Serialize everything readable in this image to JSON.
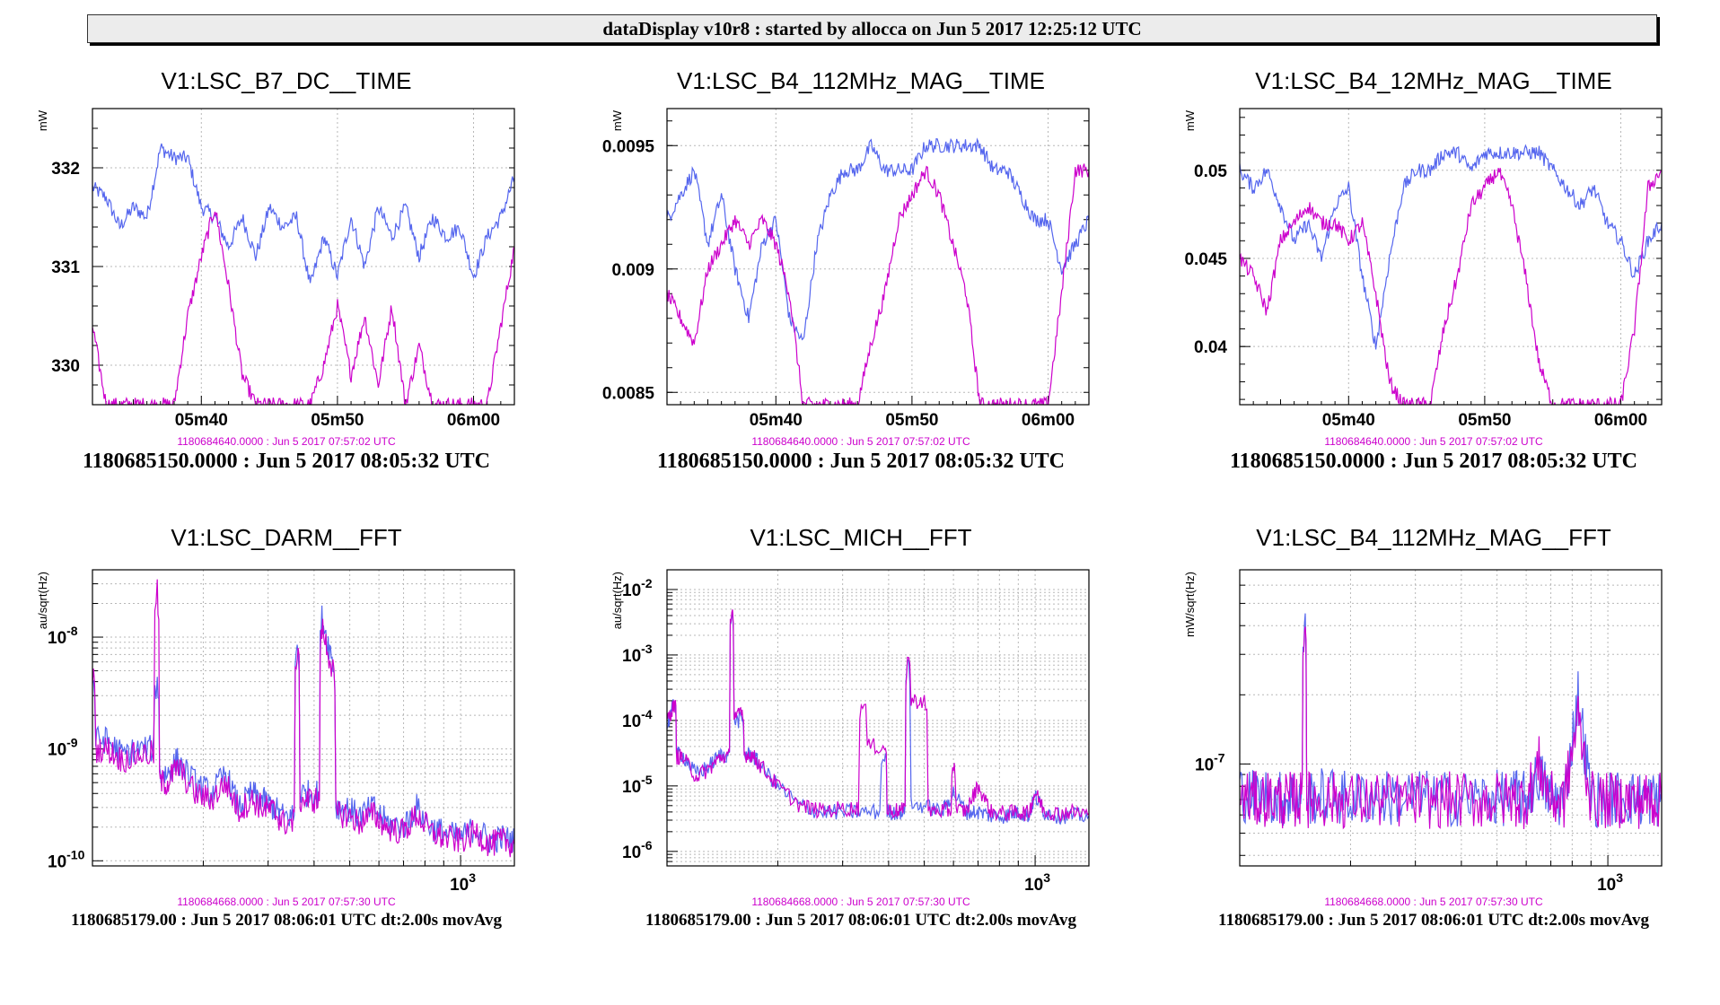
{
  "window": {
    "title": "dataDisplay v10r8 : started by allocca on Jun  5 2017 12:25:12 UTC"
  },
  "colors": {
    "series_blue": "#5566ee",
    "series_magenta": "#cc00cc"
  },
  "chart_data": [
    {
      "type": "line",
      "title": "V1:LSC_B7_DC__TIME",
      "ylabel": "mW",
      "xlabel": "",
      "xticks": [
        "05m40",
        "05m50",
        "06m00"
      ],
      "xlim": [
        32,
        63
      ],
      "ylim": [
        329.6,
        332.6
      ],
      "yticks": [
        {
          "v": 330,
          "t": "330"
        },
        {
          "v": 331,
          "t": "331"
        },
        {
          "v": 332,
          "t": "332"
        }
      ],
      "grid": true,
      "footer_small": "1180684640.0000 : Jun  5 2017 07:57:02 UTC",
      "footer_large": "1180685150.0000 : Jun  5 2017 08:05:32 UTC",
      "series": [
        {
          "color": "#5566ee",
          "x": [
            32,
            33,
            34,
            35,
            36,
            37,
            38,
            39,
            40,
            41,
            42,
            43,
            44,
            45,
            46,
            47,
            48,
            49,
            50,
            51,
            52,
            53,
            54,
            55,
            56,
            57,
            58,
            59,
            60,
            61,
            62,
            63
          ],
          "y": [
            331.8,
            331.7,
            331.4,
            331.6,
            331.5,
            332.2,
            332.1,
            332.1,
            331.6,
            331.5,
            331.2,
            331.5,
            331.1,
            331.6,
            331.4,
            331.5,
            330.8,
            331.3,
            330.9,
            331.5,
            331.0,
            331.6,
            331.3,
            331.6,
            331.1,
            331.5,
            331.3,
            331.4,
            330.9,
            331.3,
            331.5,
            331.9
          ]
        },
        {
          "color": "#cc00cc",
          "x": [
            32,
            33,
            34,
            35,
            36,
            37,
            38,
            39,
            40,
            41,
            42,
            43,
            44,
            45,
            46,
            47,
            48,
            49,
            50,
            51,
            52,
            53,
            54,
            55,
            56,
            57,
            58,
            59,
            60,
            61,
            62,
            63
          ],
          "y": [
            330.4,
            329.6,
            329.6,
            329.6,
            329.6,
            329.6,
            329.6,
            330.5,
            331.1,
            331.6,
            330.8,
            329.9,
            329.6,
            329.6,
            329.6,
            329.6,
            329.6,
            330.0,
            330.6,
            329.9,
            330.5,
            329.8,
            330.6,
            329.6,
            330.2,
            329.6,
            329.6,
            329.6,
            329.6,
            329.6,
            330.4,
            331.2
          ]
        }
      ]
    },
    {
      "type": "line",
      "title": "V1:LSC_B4_112MHz_MAG__TIME",
      "ylabel": "mW",
      "xlabel": "",
      "xticks": [
        "05m40",
        "05m50",
        "06m00"
      ],
      "xlim": [
        32,
        63
      ],
      "ylim": [
        0.00845,
        0.00965
      ],
      "yticks": [
        {
          "v": 0.0085,
          "t": "0.0085"
        },
        {
          "v": 0.009,
          "t": "0.009"
        },
        {
          "v": 0.0095,
          "t": "0.0095"
        }
      ],
      "grid": true,
      "footer_small": "1180684640.0000 : Jun  5 2017 07:57:02 UTC",
      "footer_large": "1180685150.0000 : Jun  5 2017 08:05:32 UTC",
      "series": [
        {
          "color": "#5566ee",
          "x": [
            32,
            33,
            34,
            35,
            36,
            37,
            38,
            39,
            40,
            41,
            42,
            43,
            44,
            45,
            46,
            47,
            48,
            49,
            50,
            51,
            52,
            53,
            54,
            55,
            56,
            57,
            58,
            59,
            60,
            61,
            62,
            63
          ],
          "y": [
            0.0092,
            0.0093,
            0.0094,
            0.0091,
            0.0093,
            0.009,
            0.0088,
            0.0091,
            0.0092,
            0.0088,
            0.0087,
            0.0091,
            0.0093,
            0.0094,
            0.0094,
            0.0095,
            0.0094,
            0.0094,
            0.0094,
            0.0095,
            0.0095,
            0.0095,
            0.0095,
            0.0095,
            0.0094,
            0.0094,
            0.0093,
            0.0092,
            0.0092,
            0.009,
            0.0091,
            0.0092
          ]
        },
        {
          "color": "#cc00cc",
          "x": [
            32,
            33,
            34,
            35,
            36,
            37,
            38,
            39,
            40,
            41,
            42,
            43,
            44,
            45,
            46,
            47,
            48,
            49,
            50,
            51,
            52,
            53,
            54,
            55,
            56,
            57,
            58,
            59,
            60,
            61,
            62,
            63
          ],
          "y": [
            0.0089,
            0.0088,
            0.0087,
            0.009,
            0.0091,
            0.0092,
            0.0091,
            0.0092,
            0.0091,
            0.0089,
            0.00845,
            0.00845,
            0.00845,
            0.00845,
            0.00845,
            0.0087,
            0.0089,
            0.0092,
            0.0093,
            0.0094,
            0.0093,
            0.0091,
            0.0089,
            0.00845,
            0.00845,
            0.00845,
            0.00845,
            0.00845,
            0.00845,
            0.0089,
            0.0094,
            0.0094
          ]
        }
      ]
    },
    {
      "type": "line",
      "title": "V1:LSC_B4_12MHz_MAG__TIME",
      "ylabel": "mW",
      "xlabel": "",
      "xticks": [
        "05m40",
        "05m50",
        "06m00"
      ],
      "xlim": [
        32,
        63
      ],
      "ylim": [
        0.0367,
        0.0535
      ],
      "yticks": [
        {
          "v": 0.04,
          "t": "0.04"
        },
        {
          "v": 0.045,
          "t": "0.045"
        },
        {
          "v": 0.05,
          "t": "0.05"
        }
      ],
      "grid": true,
      "footer_small": "1180684640.0000 : Jun  5 2017 07:57:02 UTC",
      "footer_large": "1180685150.0000 : Jun  5 2017 08:05:32 UTC",
      "series": [
        {
          "color": "#5566ee",
          "x": [
            32,
            33,
            34,
            35,
            36,
            37,
            38,
            39,
            40,
            41,
            42,
            43,
            44,
            45,
            46,
            47,
            48,
            49,
            50,
            51,
            52,
            53,
            54,
            55,
            56,
            57,
            58,
            59,
            60,
            61,
            62,
            63
          ],
          "y": [
            0.05,
            0.049,
            0.05,
            0.048,
            0.046,
            0.047,
            0.045,
            0.048,
            0.049,
            0.044,
            0.04,
            0.045,
            0.049,
            0.05,
            0.05,
            0.051,
            0.051,
            0.05,
            0.051,
            0.051,
            0.051,
            0.051,
            0.051,
            0.05,
            0.049,
            0.048,
            0.049,
            0.047,
            0.046,
            0.044,
            0.046,
            0.047
          ]
        },
        {
          "color": "#cc00cc",
          "x": [
            32,
            33,
            34,
            35,
            36,
            37,
            38,
            39,
            40,
            41,
            42,
            43,
            44,
            45,
            46,
            47,
            48,
            49,
            50,
            51,
            52,
            53,
            54,
            55,
            56,
            57,
            58,
            59,
            60,
            61,
            62,
            63
          ],
          "y": [
            0.045,
            0.044,
            0.042,
            0.046,
            0.047,
            0.048,
            0.047,
            0.047,
            0.046,
            0.047,
            0.043,
            0.038,
            0.0367,
            0.0367,
            0.0367,
            0.041,
            0.044,
            0.048,
            0.049,
            0.05,
            0.048,
            0.044,
            0.039,
            0.0367,
            0.0367,
            0.0367,
            0.0367,
            0.0367,
            0.0367,
            0.041,
            0.049,
            0.05
          ]
        }
      ]
    },
    {
      "type": "line",
      "title": "V1:LSC_DARM__FFT",
      "ylabel": "au/sqrt(Hz)",
      "xlabel": "",
      "xscale": "log",
      "yscale": "log",
      "xlim": [
        100,
        1400
      ],
      "ylim": [
        9e-11,
        4e-08
      ],
      "yticks": [
        {
          "v": 1e-10,
          "t": "10^-10"
        },
        {
          "v": 1e-09,
          "t": "10^-9"
        },
        {
          "v": 1e-08,
          "t": "10^-8"
        }
      ],
      "xticks_log": [
        {
          "v": 1000,
          "t": "10^3"
        }
      ],
      "grid": true,
      "footer_small": "1180684668.0000 : Jun  5 2017 07:57:30 UTC",
      "footer_large": "1180685179.00 : Jun  5 2017 08:06:01 UTC dt:2.00s movAvg",
      "series": [
        {
          "color": "#5566ee",
          "x": [
            100,
            110,
            120,
            135,
            150,
            160,
            170,
            190,
            210,
            230,
            250,
            270,
            290,
            310,
            330,
            360,
            390,
            420,
            450,
            490,
            530,
            580,
            630,
            700,
            760,
            830,
            900,
            1000,
            1100,
            1200,
            1300,
            1400
          ],
          "y": [
            4e-09,
            1.2e-09,
            9e-10,
            1e-09,
            4e-09,
            6e-10,
            8e-10,
            5e-10,
            4e-10,
            6e-10,
            3e-10,
            4e-10,
            3.5e-10,
            3e-10,
            2.5e-10,
            9e-09,
            4e-10,
            1.5e-08,
            6e-09,
            3e-10,
            2.5e-10,
            3e-10,
            2.2e-10,
            2e-10,
            3e-10,
            2e-10,
            1.8e-10,
            1.6e-10,
            2e-10,
            1.5e-10,
            1.6e-10,
            1.5e-10
          ]
        },
        {
          "color": "#cc00cc",
          "x": [
            100,
            110,
            120,
            135,
            150,
            160,
            170,
            190,
            210,
            230,
            250,
            270,
            290,
            310,
            330,
            360,
            390,
            420,
            450,
            490,
            530,
            580,
            630,
            700,
            760,
            830,
            900,
            1000,
            1100,
            1200,
            1300,
            1400
          ],
          "y": [
            5e-09,
            1e-09,
            8e-10,
            9e-10,
            2.5e-08,
            5e-10,
            7e-10,
            4e-10,
            3.5e-10,
            5e-10,
            2.8e-10,
            3.5e-10,
            3e-10,
            2.8e-10,
            2.2e-10,
            8e-09,
            3.5e-10,
            1.2e-08,
            5e-09,
            2.6e-10,
            2.2e-10,
            2.6e-10,
            2e-10,
            1.8e-10,
            2.6e-10,
            1.8e-10,
            1.6e-10,
            1.5e-10,
            1.8e-10,
            1.4e-10,
            1.5e-10,
            1.4e-10
          ]
        }
      ]
    },
    {
      "type": "line",
      "title": "V1:LSC_MICH__FFT",
      "ylabel": "au/sqrt(Hz)",
      "xlabel": "",
      "xscale": "log",
      "yscale": "log",
      "xlim": [
        100,
        1400
      ],
      "ylim": [
        6e-07,
        0.02
      ],
      "yticks": [
        {
          "v": 1e-06,
          "t": "10^-6"
        },
        {
          "v": 1e-05,
          "t": "10^-5"
        },
        {
          "v": 0.0001,
          "t": "10^-4"
        },
        {
          "v": 0.001,
          "t": "10^-3"
        },
        {
          "v": 0.01,
          "t": "10^-2"
        }
      ],
      "xticks_log": [
        {
          "v": 1000,
          "t": "10^3"
        }
      ],
      "grid": true,
      "footer_small": "1180684668.0000 : Jun  5 2017 07:57:30 UTC",
      "footer_large": "1180685179.00 : Jun  5 2017 08:06:01 UTC dt:2.00s movAvg",
      "series": [
        {
          "color": "#5566ee",
          "x": [
            100,
            105,
            110,
            120,
            130,
            140,
            150,
            160,
            170,
            180,
            200,
            230,
            260,
            300,
            340,
            390,
            420,
            450,
            500,
            560,
            600,
            650,
            700,
            760,
            830,
            900,
            960,
            1000,
            1060,
            1150,
            1250,
            1400
          ],
          "y": [
            8e-05,
            0.0002,
            3e-05,
            1.5e-05,
            2e-05,
            3e-05,
            0.005,
            0.0001,
            3e-05,
            2e-05,
            1e-05,
            5e-06,
            4e-06,
            4e-06,
            4e-06,
            3e-05,
            4e-06,
            0.001,
            5e-06,
            4e-06,
            8e-06,
            4e-06,
            4e-06,
            3.5e-06,
            3.5e-06,
            4e-06,
            3.5e-06,
            7e-06,
            4e-06,
            3.5e-06,
            3.5e-06,
            3.5e-06
          ]
        },
        {
          "color": "#cc00cc",
          "x": [
            100,
            105,
            110,
            120,
            130,
            140,
            150,
            160,
            170,
            180,
            200,
            230,
            260,
            300,
            340,
            390,
            420,
            450,
            500,
            560,
            600,
            650,
            700,
            760,
            830,
            900,
            960,
            1000,
            1060,
            1150,
            1250,
            1400
          ],
          "y": [
            0.0001,
            0.00018,
            2.8e-05,
            1.4e-05,
            1.8e-05,
            2.8e-05,
            0.006,
            0.00012,
            3e-05,
            2e-05,
            1e-05,
            5e-06,
            4.2e-06,
            4.5e-06,
            0.0002,
            4e-05,
            4.2e-06,
            0.0009,
            0.0002,
            4.2e-06,
            2e-05,
            4.2e-06,
            1e-05,
            4e-06,
            3.8e-06,
            4e-06,
            3.8e-06,
            8e-06,
            4.2e-06,
            3.8e-06,
            4e-06,
            3.8e-06
          ]
        }
      ]
    },
    {
      "type": "line",
      "title": "V1:LSC_B4_112MHz_MAG__FFT",
      "ylabel": "mW/sqrt(Hz)",
      "xlabel": "",
      "xscale": "log",
      "yscale": "log",
      "xlim": [
        100,
        1400
      ],
      "ylim": [
        3.6e-08,
        7e-07
      ],
      "yticks": [
        {
          "v": 1e-07,
          "t": "10^-7"
        }
      ],
      "xticks_log": [
        {
          "v": 1000,
          "t": "10^3"
        }
      ],
      "grid": true,
      "footer_small": "1180684668.0000 : Jun  5 2017 07:57:30 UTC",
      "footer_large": "1180685179.00 : Jun  5 2017 08:06:01 UTC dt:2.00s movAvg",
      "series": [
        {
          "color": "#5566ee",
          "x": [
            100,
            110,
            120,
            130,
            140,
            150,
            160,
            180,
            200,
            230,
            260,
            300,
            340,
            390,
            450,
            500,
            560,
            600,
            650,
            700,
            760,
            830,
            900,
            1000,
            1100,
            1200,
            1300,
            1400
          ],
          "y": [
            7.5e-08,
            7.2e-08,
            7.4e-08,
            7e-08,
            7.3e-08,
            4e-07,
            7.2e-08,
            7.3e-08,
            7e-08,
            7.2e-08,
            7.1e-08,
            7.2e-08,
            7e-08,
            7.1e-08,
            7e-08,
            7.1e-08,
            7.2e-08,
            7e-08,
            9e-08,
            7.1e-08,
            7e-08,
            2e-07,
            7.1e-08,
            7e-08,
            7.2e-08,
            7e-08,
            7.1e-08,
            7e-08
          ]
        },
        {
          "color": "#cc00cc",
          "x": [
            100,
            110,
            120,
            130,
            140,
            150,
            160,
            180,
            200,
            230,
            260,
            300,
            340,
            390,
            450,
            500,
            560,
            600,
            650,
            700,
            760,
            830,
            900,
            1000,
            1100,
            1200,
            1300,
            1400
          ],
          "y": [
            7.2e-08,
            7e-08,
            7.1e-08,
            6.9e-08,
            7e-08,
            4.5e-07,
            7e-08,
            7e-08,
            6.9e-08,
            7e-08,
            6.9e-08,
            7e-08,
            6.9e-08,
            7e-08,
            6.9e-08,
            7e-08,
            7e-08,
            6.9e-08,
            1e-07,
            7e-08,
            6.9e-08,
            1.6e-07,
            7e-08,
            6.9e-08,
            7e-08,
            6.9e-08,
            7e-08,
            6.9e-08
          ]
        }
      ]
    }
  ]
}
